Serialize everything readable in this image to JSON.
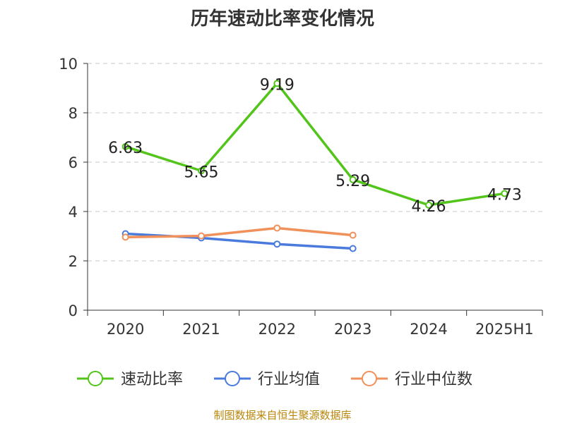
{
  "chart_data": {
    "type": "line",
    "title": "历年速动比率变化情况",
    "categories": [
      "2020",
      "2021",
      "2022",
      "2023",
      "2024",
      "2025H1"
    ],
    "ylim": [
      0,
      10
    ],
    "yticks": [
      0,
      2,
      4,
      6,
      8,
      10
    ],
    "grid": "horizontal-dashed",
    "legend": "bottom",
    "series": [
      {
        "name": "速动比率",
        "color": "#52c41a",
        "values": [
          6.63,
          5.65,
          9.19,
          5.29,
          4.26,
          4.73
        ],
        "labels": [
          "6.63",
          "5.65",
          "9.19",
          "5.29",
          "4.26",
          "4.73"
        ]
      },
      {
        "name": "行业均值",
        "color": "#4a7bdc",
        "values": [
          3.1,
          2.93,
          2.68,
          2.5,
          null,
          null
        ]
      },
      {
        "name": "行业中位数",
        "color": "#f0905a",
        "values": [
          2.96,
          3.01,
          3.33,
          3.04,
          null,
          null
        ]
      }
    ]
  },
  "source": "制图数据来自恒生聚源数据库"
}
